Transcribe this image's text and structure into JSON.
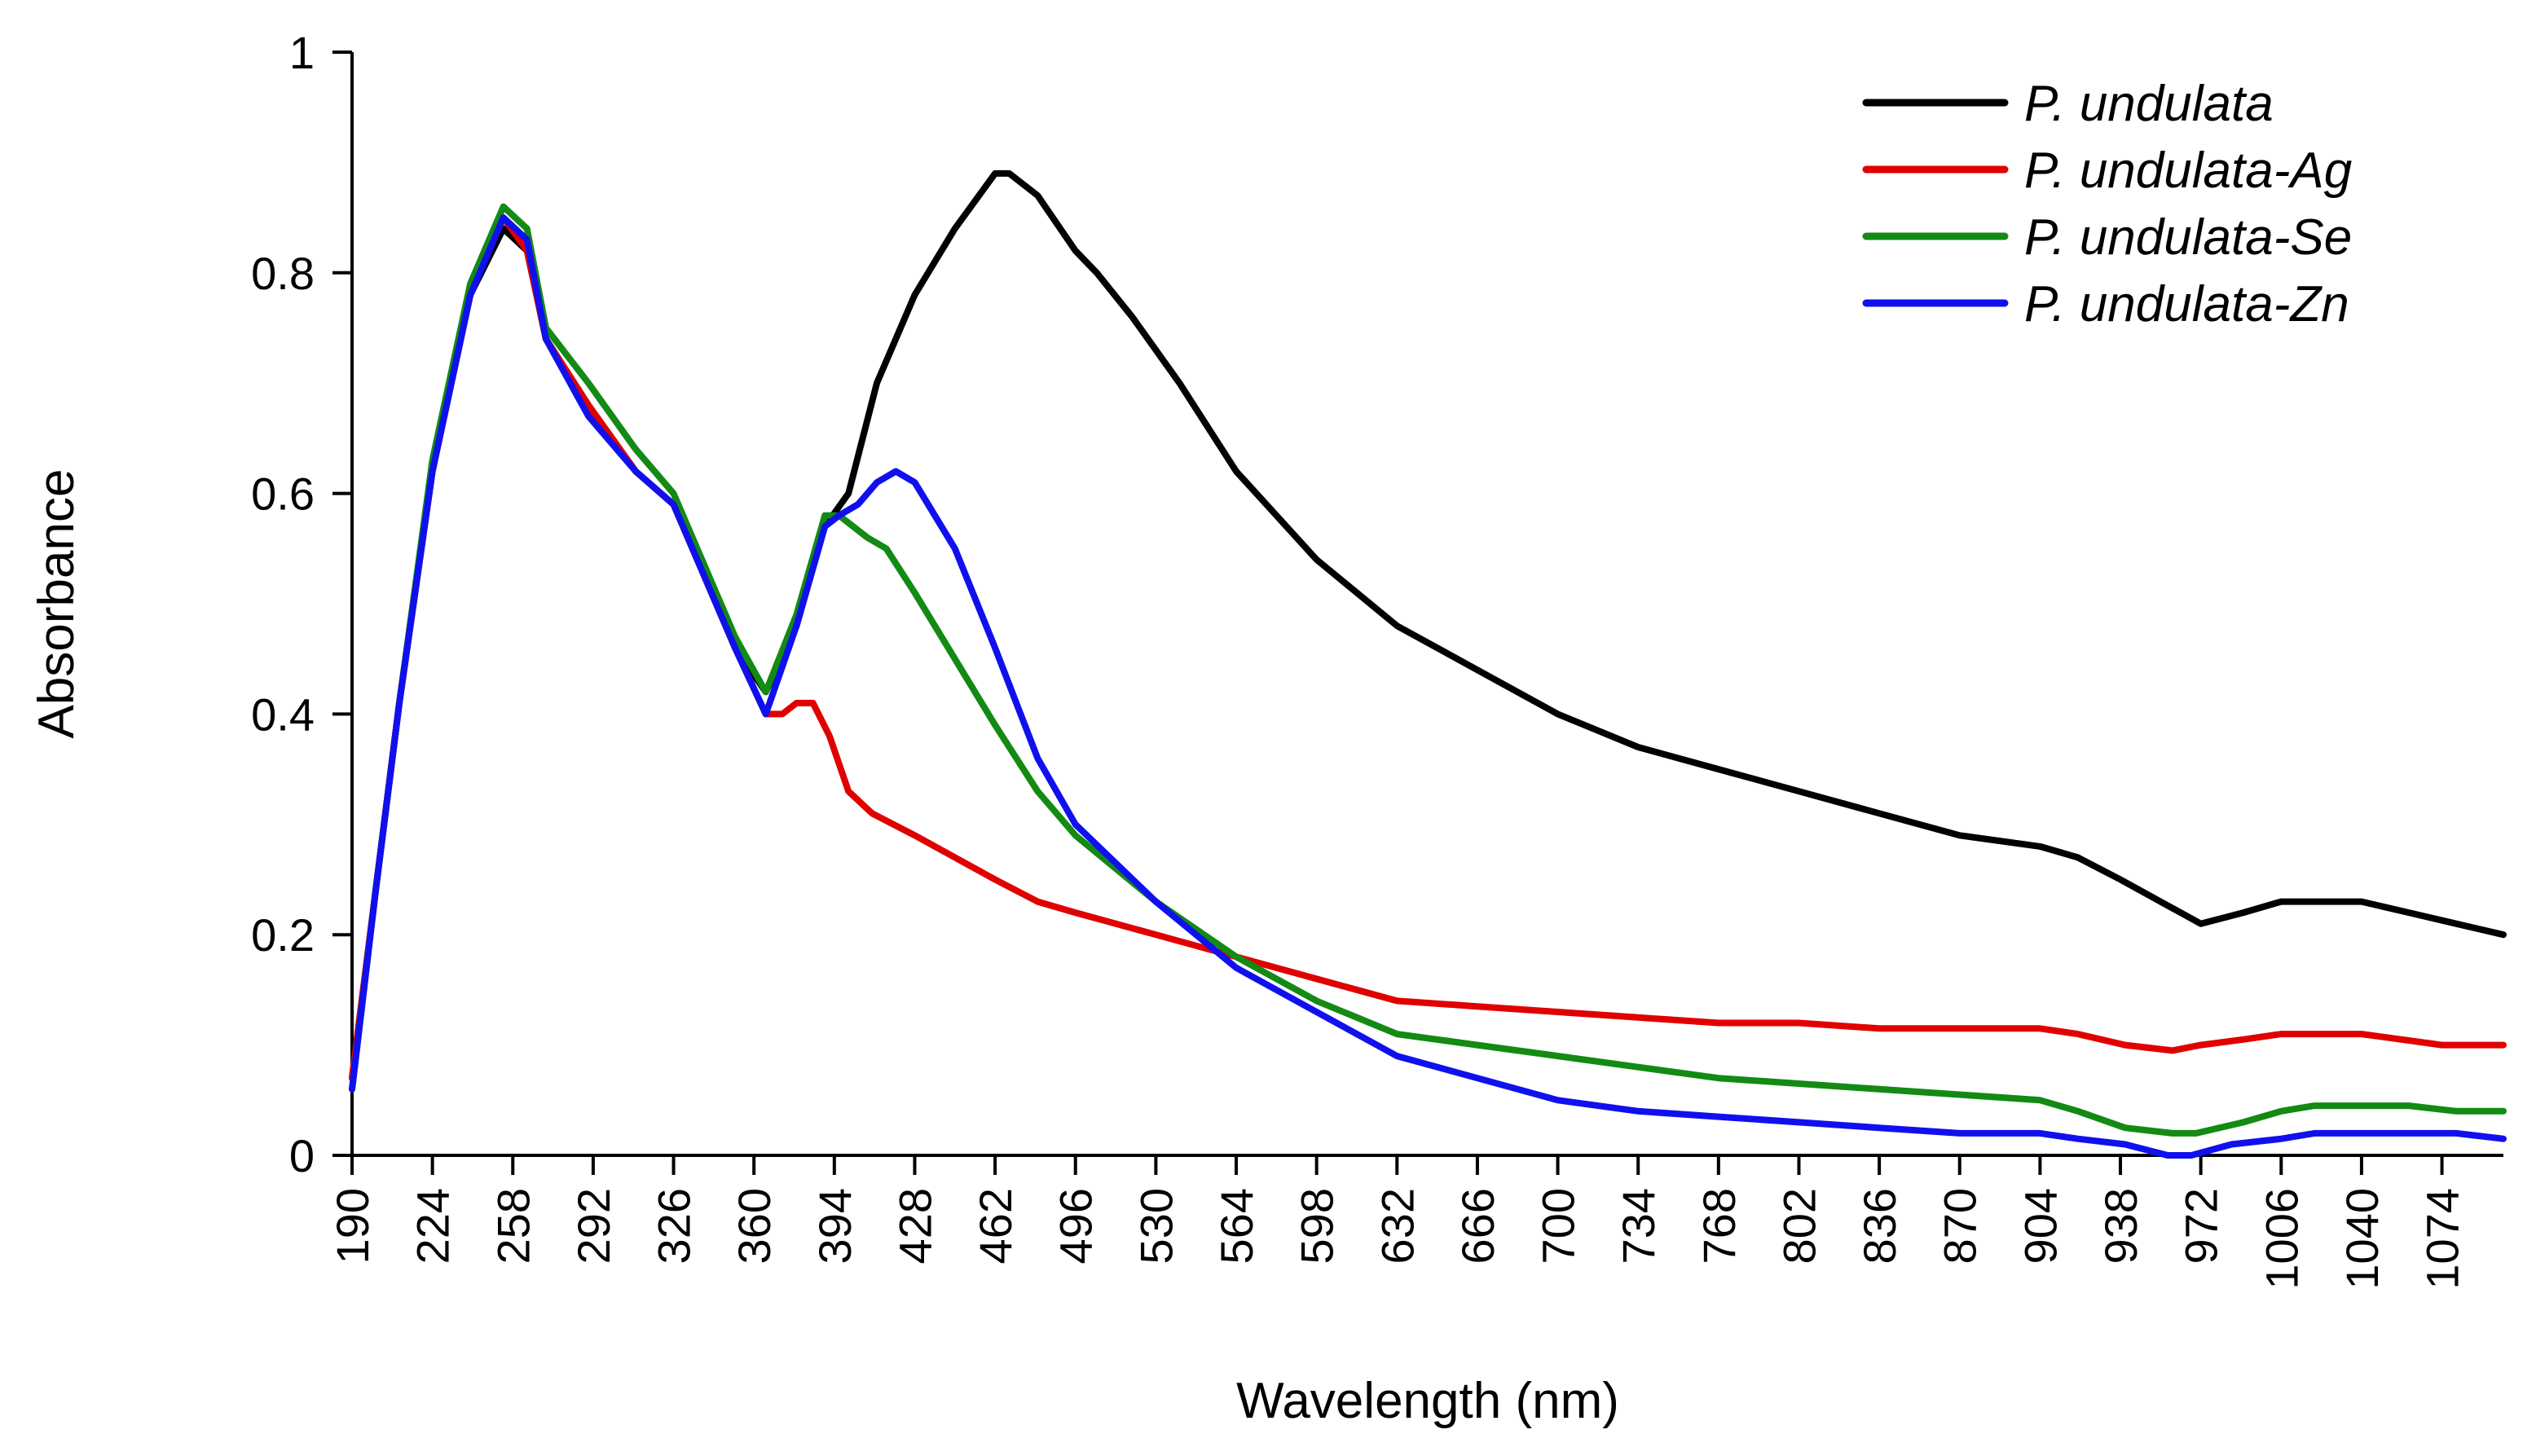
{
  "chart_data": {
    "type": "line",
    "title": "",
    "xlabel": "Wavelength (nm)",
    "ylabel": "Absorbance",
    "xlim": [
      190,
      1100
    ],
    "ylim": [
      0,
      1
    ],
    "grid": false,
    "legend_position": "top-right",
    "x_ticks": [
      "190",
      "224",
      "258",
      "292",
      "326",
      "360",
      "394",
      "428",
      "462",
      "496",
      "530",
      "564",
      "598",
      "632",
      "666",
      "700",
      "734",
      "768",
      "802",
      "836",
      "870",
      "904",
      "938",
      "972",
      "1006",
      "1040",
      "1074"
    ],
    "y_ticks": [
      "0",
      "0.2",
      "0.4",
      "0.6",
      "0.8",
      "1"
    ],
    "series": [
      {
        "name": "P. undulata",
        "color": "#000000",
        "x": [
          190,
          200,
          210,
          224,
          240,
          254,
          264,
          272,
          290,
          310,
          326,
          340,
          352,
          365,
          378,
          390,
          400,
          412,
          428,
          445,
          462,
          468,
          480,
          496,
          505,
          520,
          540,
          564,
          598,
          632,
          666,
          700,
          734,
          768,
          802,
          836,
          870,
          904,
          920,
          938,
          955,
          972,
          990,
          1006,
          1020,
          1040,
          1060,
          1080,
          1100
        ],
        "y": [
          0.07,
          0.24,
          0.41,
          0.62,
          0.78,
          0.84,
          0.82,
          0.74,
          0.68,
          0.62,
          0.59,
          0.52,
          0.46,
          0.42,
          0.48,
          0.57,
          0.6,
          0.7,
          0.78,
          0.84,
          0.89,
          0.89,
          0.87,
          0.82,
          0.8,
          0.76,
          0.7,
          0.62,
          0.54,
          0.48,
          0.44,
          0.4,
          0.37,
          0.35,
          0.33,
          0.31,
          0.29,
          0.28,
          0.27,
          0.25,
          0.23,
          0.21,
          0.22,
          0.23,
          0.23,
          0.23,
          0.22,
          0.21,
          0.2
        ]
      },
      {
        "name": "P. undulata-Ag",
        "color": "#e00000",
        "x": [
          190,
          200,
          210,
          224,
          240,
          254,
          264,
          272,
          290,
          310,
          326,
          340,
          352,
          365,
          372,
          378,
          385,
          392,
          400,
          410,
          428,
          445,
          462,
          480,
          496,
          530,
          564,
          598,
          632,
          666,
          700,
          734,
          768,
          802,
          836,
          870,
          904,
          920,
          940,
          960,
          972,
          990,
          1006,
          1040,
          1074,
          1100
        ],
        "y": [
          0.07,
          0.24,
          0.41,
          0.62,
          0.78,
          0.85,
          0.82,
          0.74,
          0.68,
          0.62,
          0.59,
          0.52,
          0.46,
          0.4,
          0.4,
          0.41,
          0.41,
          0.38,
          0.33,
          0.31,
          0.29,
          0.27,
          0.25,
          0.23,
          0.22,
          0.2,
          0.18,
          0.16,
          0.14,
          0.135,
          0.13,
          0.125,
          0.12,
          0.12,
          0.115,
          0.115,
          0.115,
          0.11,
          0.1,
          0.095,
          0.1,
          0.105,
          0.11,
          0.11,
          0.1,
          0.1
        ]
      },
      {
        "name": "P. undulata-Se",
        "color": "#138a13",
        "x": [
          190,
          200,
          210,
          224,
          240,
          254,
          264,
          272,
          290,
          310,
          326,
          340,
          352,
          365,
          378,
          390,
          396,
          402,
          408,
          416,
          428,
          445,
          462,
          480,
          496,
          530,
          564,
          598,
          632,
          666,
          700,
          734,
          768,
          802,
          836,
          870,
          904,
          920,
          940,
          960,
          970,
          990,
          1006,
          1020,
          1040,
          1060,
          1080,
          1100
        ],
        "y": [
          0.06,
          0.24,
          0.41,
          0.63,
          0.79,
          0.86,
          0.84,
          0.75,
          0.7,
          0.64,
          0.6,
          0.53,
          0.47,
          0.42,
          0.49,
          0.58,
          0.58,
          0.57,
          0.56,
          0.55,
          0.51,
          0.45,
          0.39,
          0.33,
          0.29,
          0.23,
          0.18,
          0.14,
          0.11,
          0.1,
          0.09,
          0.08,
          0.07,
          0.065,
          0.06,
          0.055,
          0.05,
          0.04,
          0.025,
          0.02,
          0.02,
          0.03,
          0.04,
          0.045,
          0.045,
          0.045,
          0.04,
          0.04
        ]
      },
      {
        "name": "P. undulata-Zn",
        "color": "#1010ee",
        "x": [
          190,
          200,
          210,
          224,
          240,
          254,
          264,
          272,
          290,
          310,
          326,
          340,
          352,
          365,
          378,
          390,
          396,
          404,
          412,
          420,
          428,
          445,
          462,
          480,
          496,
          530,
          564,
          598,
          632,
          666,
          700,
          734,
          768,
          802,
          836,
          870,
          904,
          920,
          940,
          958,
          968,
          985,
          1006,
          1020,
          1040,
          1060,
          1080,
          1100
        ],
        "y": [
          0.06,
          0.24,
          0.41,
          0.62,
          0.78,
          0.85,
          0.83,
          0.74,
          0.67,
          0.62,
          0.59,
          0.52,
          0.46,
          0.4,
          0.48,
          0.57,
          0.58,
          0.59,
          0.61,
          0.62,
          0.61,
          0.55,
          0.46,
          0.36,
          0.3,
          0.23,
          0.17,
          0.13,
          0.09,
          0.07,
          0.05,
          0.04,
          0.035,
          0.03,
          0.025,
          0.02,
          0.02,
          0.015,
          0.01,
          0.0,
          0.0,
          0.01,
          0.015,
          0.02,
          0.02,
          0.02,
          0.02,
          0.015
        ]
      }
    ]
  }
}
